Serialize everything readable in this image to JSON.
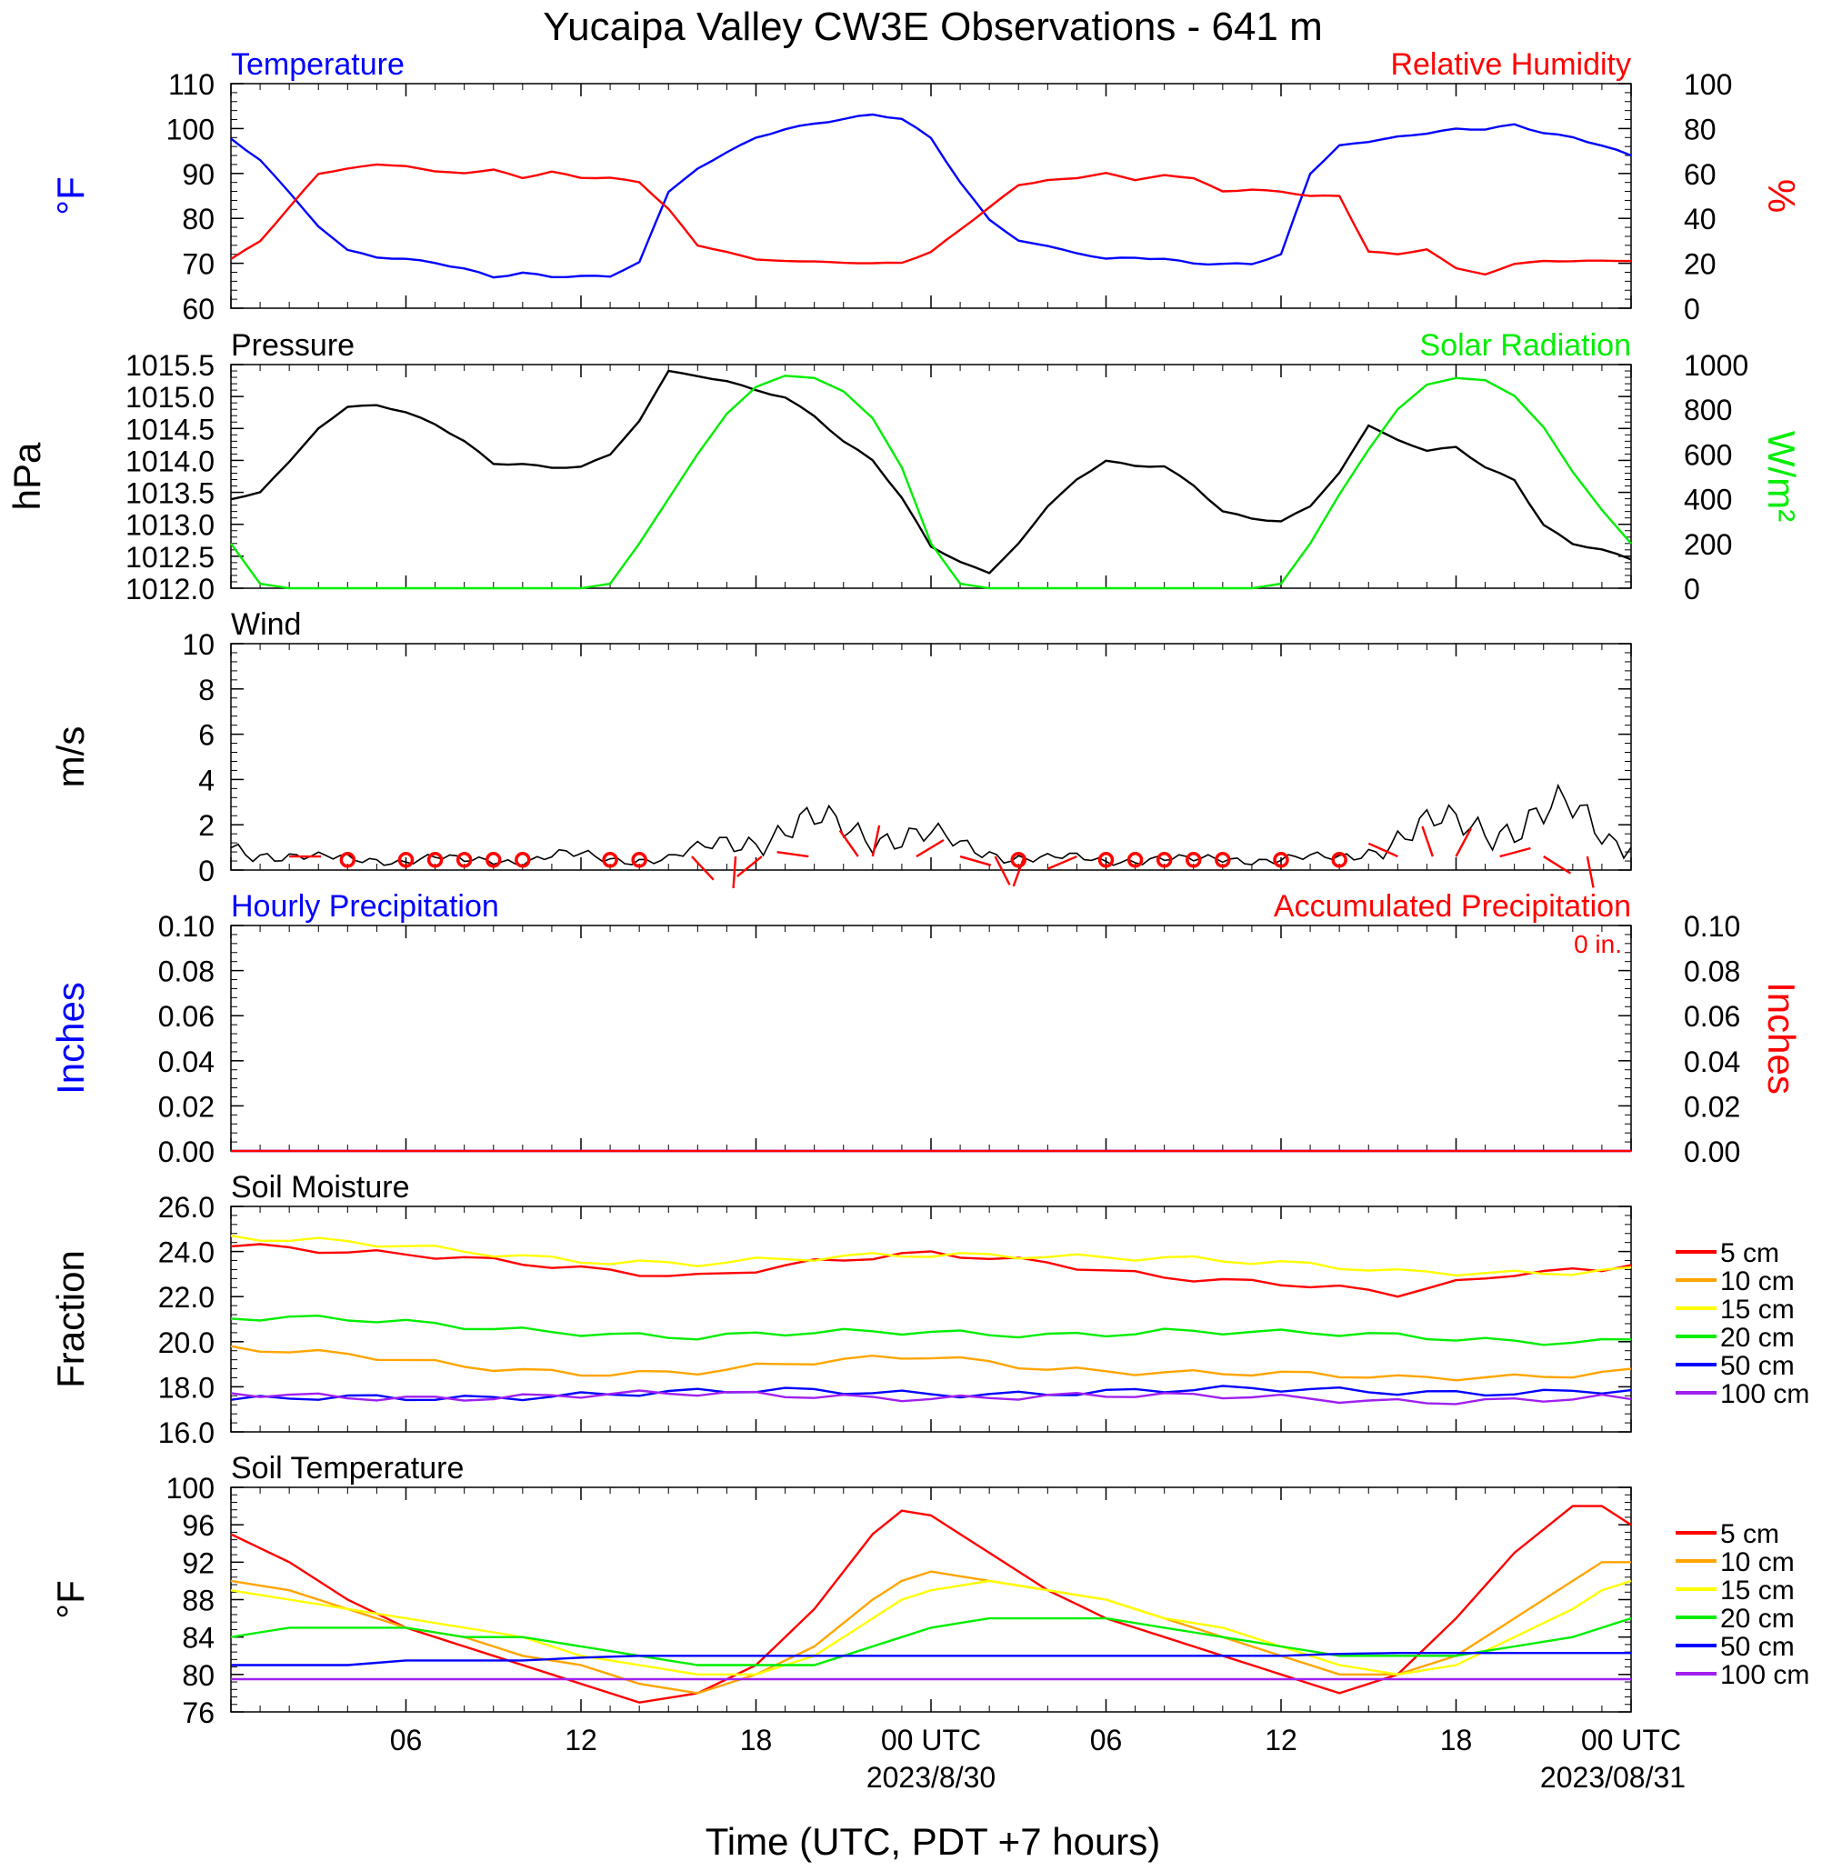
{
  "title": "Yucaipa Valley CW3E Observations - 641 m",
  "xaxis": {
    "label": "Time (UTC, PDT +7 hours)",
    "tick_labels": [
      "06",
      "12",
      "18",
      "00 UTC",
      "06",
      "12",
      "18",
      "00 UTC"
    ],
    "date_labels": [
      "2023/8/30",
      "2023/08/31"
    ]
  },
  "colors": {
    "temperature": "#0000ff",
    "humidity": "#ff0000",
    "pressure": "#000000",
    "solar": "#00ee00",
    "wind": "#000000",
    "wind_barb": "#ff0000",
    "soil_5cm": "#ff0000",
    "soil_10cm": "#ffa500",
    "soil_15cm": "#ffff00",
    "soil_20cm": "#00ee00",
    "soil_50cm": "#0000ff",
    "soil_100cm": "#a020f0"
  },
  "chart_data": [
    {
      "type": "line",
      "panel": "temperature-humidity",
      "title_left": "Temperature",
      "title_right": "Relative Humidity",
      "ylabel_left": "°F",
      "ylabel_right": "%",
      "ylim_left": [
        60,
        110
      ],
      "ylim_right": [
        0,
        100
      ],
      "yticks_left": [
        "110",
        "100",
        "90",
        "80",
        "70",
        "60"
      ],
      "yticks_right": [
        "100",
        "80",
        "60",
        "40",
        "20",
        "0"
      ],
      "x_hours": [
        0,
        1,
        2,
        3,
        4,
        5,
        6,
        7,
        8,
        9,
        10,
        11,
        12,
        13,
        14,
        15,
        16,
        17,
        18,
        19,
        20,
        21,
        22,
        23,
        24,
        25,
        26,
        27,
        28,
        29,
        30,
        31,
        32,
        33,
        34,
        35,
        36,
        37,
        38,
        39,
        40,
        41,
        42,
        43,
        44,
        45,
        46,
        47,
        48
      ],
      "series": [
        {
          "name": "Temperature",
          "axis": "left",
          "values": [
            98,
            93,
            86,
            78,
            73,
            71,
            71,
            70,
            69,
            67,
            68,
            67,
            67,
            67,
            70,
            86,
            91,
            95,
            98,
            100,
            101,
            102,
            103,
            102,
            98,
            88,
            80,
            75,
            74,
            72,
            71,
            71,
            71,
            70,
            70,
            70,
            72,
            90,
            96,
            97,
            98,
            99,
            100,
            100,
            101,
            99,
            98,
            96,
            94
          ]
        },
        {
          "name": "Relative Humidity",
          "axis": "right",
          "values": [
            22,
            30,
            45,
            60,
            62,
            64,
            63,
            61,
            60,
            62,
            58,
            61,
            58,
            58,
            56,
            44,
            28,
            25,
            22,
            21,
            21,
            20,
            20,
            20,
            25,
            35,
            45,
            55,
            57,
            58,
            60,
            57,
            59,
            58,
            52,
            53,
            52,
            50,
            50,
            25,
            24,
            26,
            18,
            15,
            20,
            21,
            21,
            21,
            21
          ]
        }
      ]
    },
    {
      "type": "line",
      "panel": "pressure-solar",
      "title_left": "Pressure",
      "title_right": "Solar Radiation",
      "ylabel_left": "hPa",
      "ylabel_right": "W/m²",
      "ylim_left": [
        1012.0,
        1015.5
      ],
      "ylim_right": [
        0,
        1000
      ],
      "yticks_left": [
        "1015.5",
        "1015.0",
        "1014.5",
        "1014.0",
        "1013.5",
        "1013.0",
        "1012.5",
        "1012.0"
      ],
      "yticks_right": [
        "1000",
        "800",
        "600",
        "400",
        "200",
        "0"
      ],
      "x_hours": [
        0,
        1,
        2,
        3,
        4,
        5,
        6,
        7,
        8,
        9,
        10,
        11,
        12,
        13,
        14,
        15,
        16,
        17,
        18,
        19,
        20,
        21,
        22,
        23,
        24,
        25,
        26,
        27,
        28,
        29,
        30,
        31,
        32,
        33,
        34,
        35,
        36,
        37,
        38,
        39,
        40,
        41,
        42,
        43,
        44,
        45,
        46,
        47,
        48
      ],
      "series": [
        {
          "name": "Pressure",
          "axis": "left",
          "values": [
            1013.4,
            1013.5,
            1014.0,
            1014.5,
            1014.85,
            1014.85,
            1014.75,
            1014.55,
            1014.3,
            1013.95,
            1013.95,
            1013.9,
            1013.9,
            1014.1,
            1014.6,
            1015.4,
            1015.3,
            1015.25,
            1015.1,
            1015.0,
            1014.7,
            1014.3,
            1014.0,
            1013.4,
            1012.65,
            1012.4,
            1012.25,
            1012.7,
            1013.3,
            1013.7,
            1014.0,
            1013.9,
            1013.9,
            1013.6,
            1013.2,
            1013.1,
            1013.05,
            1013.3,
            1013.8,
            1014.55,
            1014.3,
            1014.15,
            1014.2,
            1013.9,
            1013.7,
            1013.0,
            1012.7,
            1012.6,
            1012.45
          ]
        },
        {
          "name": "Solar Radiation",
          "axis": "right",
          "values": [
            200,
            20,
            0,
            0,
            0,
            0,
            0,
            0,
            0,
            0,
            0,
            0,
            0,
            20,
            200,
            400,
            600,
            780,
            900,
            950,
            940,
            880,
            760,
            540,
            200,
            20,
            0,
            0,
            0,
            0,
            0,
            0,
            0,
            0,
            0,
            0,
            20,
            200,
            420,
            620,
            800,
            910,
            940,
            930,
            860,
            720,
            520,
            350,
            200
          ]
        }
      ]
    },
    {
      "type": "line",
      "panel": "wind",
      "title": "Wind",
      "ylabel": "m/s",
      "ylim": [
        0,
        10
      ],
      "yticks": [
        "10",
        "8",
        "6",
        "4",
        "2",
        "0"
      ],
      "x_hours": [
        0,
        1,
        2,
        3,
        4,
        5,
        6,
        7,
        8,
        9,
        10,
        11,
        12,
        13,
        14,
        15,
        16,
        17,
        18,
        19,
        20,
        21,
        22,
        23,
        24,
        25,
        26,
        27,
        28,
        29,
        30,
        31,
        32,
        33,
        34,
        35,
        36,
        37,
        38,
        39,
        40,
        41,
        42,
        43,
        44,
        45,
        46,
        47,
        48
      ],
      "series": [
        {
          "name": "Wind Speed",
          "values": [
            1.0,
            0.8,
            0.6,
            0.5,
            0.5,
            0.5,
            0.4,
            0.5,
            0.4,
            0.5,
            0.4,
            0.6,
            0.6,
            0.5,
            0.5,
            0.5,
            0.8,
            1.2,
            1.5,
            1.8,
            1.9,
            1.8,
            1.7,
            1.6,
            1.4,
            1.0,
            0.8,
            0.6,
            0.5,
            0.5,
            0.4,
            0.5,
            0.5,
            0.4,
            0.5,
            0.5,
            0.5,
            0.5,
            0.5,
            0.9,
            1.5,
            1.8,
            1.9,
            2.0,
            2.1,
            2.3,
            2.4,
            1.8,
            1.0
          ]
        }
      ],
      "calm_markers_hours": [
        4,
        6,
        7,
        8,
        9,
        10,
        13,
        14,
        27,
        30,
        31,
        32,
        33,
        34,
        36,
        38
      ]
    },
    {
      "type": "line",
      "panel": "precipitation",
      "title_left": "Hourly Precipitation",
      "title_right": "Accumulated Precipitation",
      "annotation": "0 in.",
      "ylabel_left": "Inches",
      "ylabel_right": "Inches",
      "ylim_left": [
        0,
        0.1
      ],
      "ylim_right": [
        0,
        0.1
      ],
      "yticks_left": [
        "0.10",
        "0.08",
        "0.06",
        "0.04",
        "0.02",
        "0.00"
      ],
      "yticks_right": [
        "0.10",
        "0.08",
        "0.06",
        "0.04",
        "0.02",
        "0.00"
      ],
      "x_hours": [
        0,
        48
      ],
      "series": [
        {
          "name": "Hourly Precipitation",
          "values": [
            0,
            0
          ]
        },
        {
          "name": "Accumulated Precipitation",
          "values": [
            0,
            0
          ]
        }
      ]
    },
    {
      "type": "line",
      "panel": "soil-moisture",
      "title": "Soil Moisture",
      "ylabel": "Fraction",
      "ylim": [
        16,
        26
      ],
      "yticks": [
        "26.0",
        "24.0",
        "22.0",
        "20.0",
        "18.0",
        "16.0"
      ],
      "x_hours": [
        0,
        4,
        8,
        12,
        16,
        20,
        24,
        28,
        32,
        36,
        40,
        44,
        48
      ],
      "series": [
        {
          "name": "5 cm",
          "values": [
            24.4,
            23.9,
            23.6,
            23.3,
            23.0,
            23.5,
            23.8,
            23.5,
            23.0,
            22.6,
            22.0,
            23.0,
            23.4
          ]
        },
        {
          "name": "10 cm",
          "values": [
            19.7,
            19.3,
            18.9,
            18.7,
            18.7,
            19.0,
            19.3,
            18.9,
            18.7,
            18.5,
            18.3,
            18.5,
            18.8
          ]
        },
        {
          "name": "15 cm",
          "values": [
            24.6,
            24.3,
            24.0,
            23.7,
            23.5,
            23.6,
            23.8,
            23.9,
            23.8,
            23.4,
            23.0,
            23.1,
            23.3
          ]
        },
        {
          "name": "20 cm",
          "values": [
            21.0,
            20.9,
            20.7,
            20.5,
            20.2,
            20.3,
            20.4,
            20.4,
            20.5,
            20.3,
            20.2,
            20.1,
            20.1
          ]
        },
        {
          "name": "50 cm",
          "values": [
            17.3,
            17.5,
            17.6,
            17.7,
            17.7,
            17.75,
            17.75,
            17.8,
            17.8,
            17.8,
            17.8,
            17.85,
            17.85
          ]
        },
        {
          "name": "100 cm",
          "values": [
            17.6,
            17.6,
            17.6,
            17.6,
            17.6,
            17.6,
            17.6,
            17.6,
            17.5,
            17.5,
            17.45,
            17.45,
            17.45
          ]
        }
      ]
    },
    {
      "type": "line",
      "panel": "soil-temperature",
      "title": "Soil Temperature",
      "ylabel": "°F",
      "ylim": [
        76,
        100
      ],
      "yticks": [
        "100",
        "96",
        "92",
        "88",
        "84",
        "80",
        "76"
      ],
      "x_hours": [
        0,
        2,
        4,
        6,
        8,
        10,
        12,
        14,
        16,
        18,
        20,
        22,
        23,
        24,
        26,
        28,
        30,
        32,
        34,
        36,
        38,
        40,
        42,
        44,
        46,
        47,
        48
      ],
      "series": [
        {
          "name": "5 cm",
          "values": [
            95,
            92,
            88,
            85,
            83,
            81,
            79,
            77,
            78,
            81,
            87,
            95,
            97.5,
            97,
            93,
            89,
            86,
            84,
            82,
            80,
            78,
            80,
            86,
            93,
            98,
            98,
            96
          ]
        },
        {
          "name": "10 cm",
          "values": [
            90,
            89,
            87,
            85,
            84,
            82,
            81,
            79,
            78,
            80,
            83,
            88,
            90,
            91,
            90,
            89,
            88,
            86,
            84,
            82,
            80,
            80,
            82,
            86,
            90,
            92,
            92
          ]
        },
        {
          "name": "15 cm",
          "values": [
            89,
            88,
            87,
            86,
            85,
            84,
            82,
            81,
            80,
            80,
            82,
            86,
            88,
            89,
            90,
            89,
            88,
            86,
            85,
            83,
            81,
            80,
            81,
            84,
            87,
            89,
            90
          ]
        },
        {
          "name": "20 cm",
          "values": [
            84,
            85,
            85,
            85,
            84,
            84,
            83,
            82,
            81,
            81,
            81,
            83,
            84,
            85,
            86,
            86,
            86,
            85,
            84,
            83,
            82,
            82,
            82,
            83,
            84,
            85,
            86
          ]
        },
        {
          "name": "50 cm",
          "values": [
            81,
            81,
            81,
            81.5,
            81.5,
            81.5,
            81.8,
            82,
            82,
            82,
            82,
            82,
            82,
            82,
            82,
            82,
            82,
            82,
            82,
            82,
            82.2,
            82.3,
            82.3,
            82.3,
            82.3,
            82.3,
            82.3
          ]
        },
        {
          "name": "100 cm",
          "values": [
            79.5,
            79.5,
            79.5,
            79.5,
            79.5,
            79.5,
            79.5,
            79.5,
            79.5,
            79.5,
            79.5,
            79.5,
            79.5,
            79.5,
            79.5,
            79.5,
            79.5,
            79.5,
            79.5,
            79.5,
            79.5,
            79.5,
            79.5,
            79.5,
            79.5,
            79.5,
            79.5
          ]
        }
      ]
    }
  ],
  "legend": {
    "items": [
      "5 cm",
      "10 cm",
      "15 cm",
      "20 cm",
      "50 cm",
      "100 cm"
    ]
  }
}
